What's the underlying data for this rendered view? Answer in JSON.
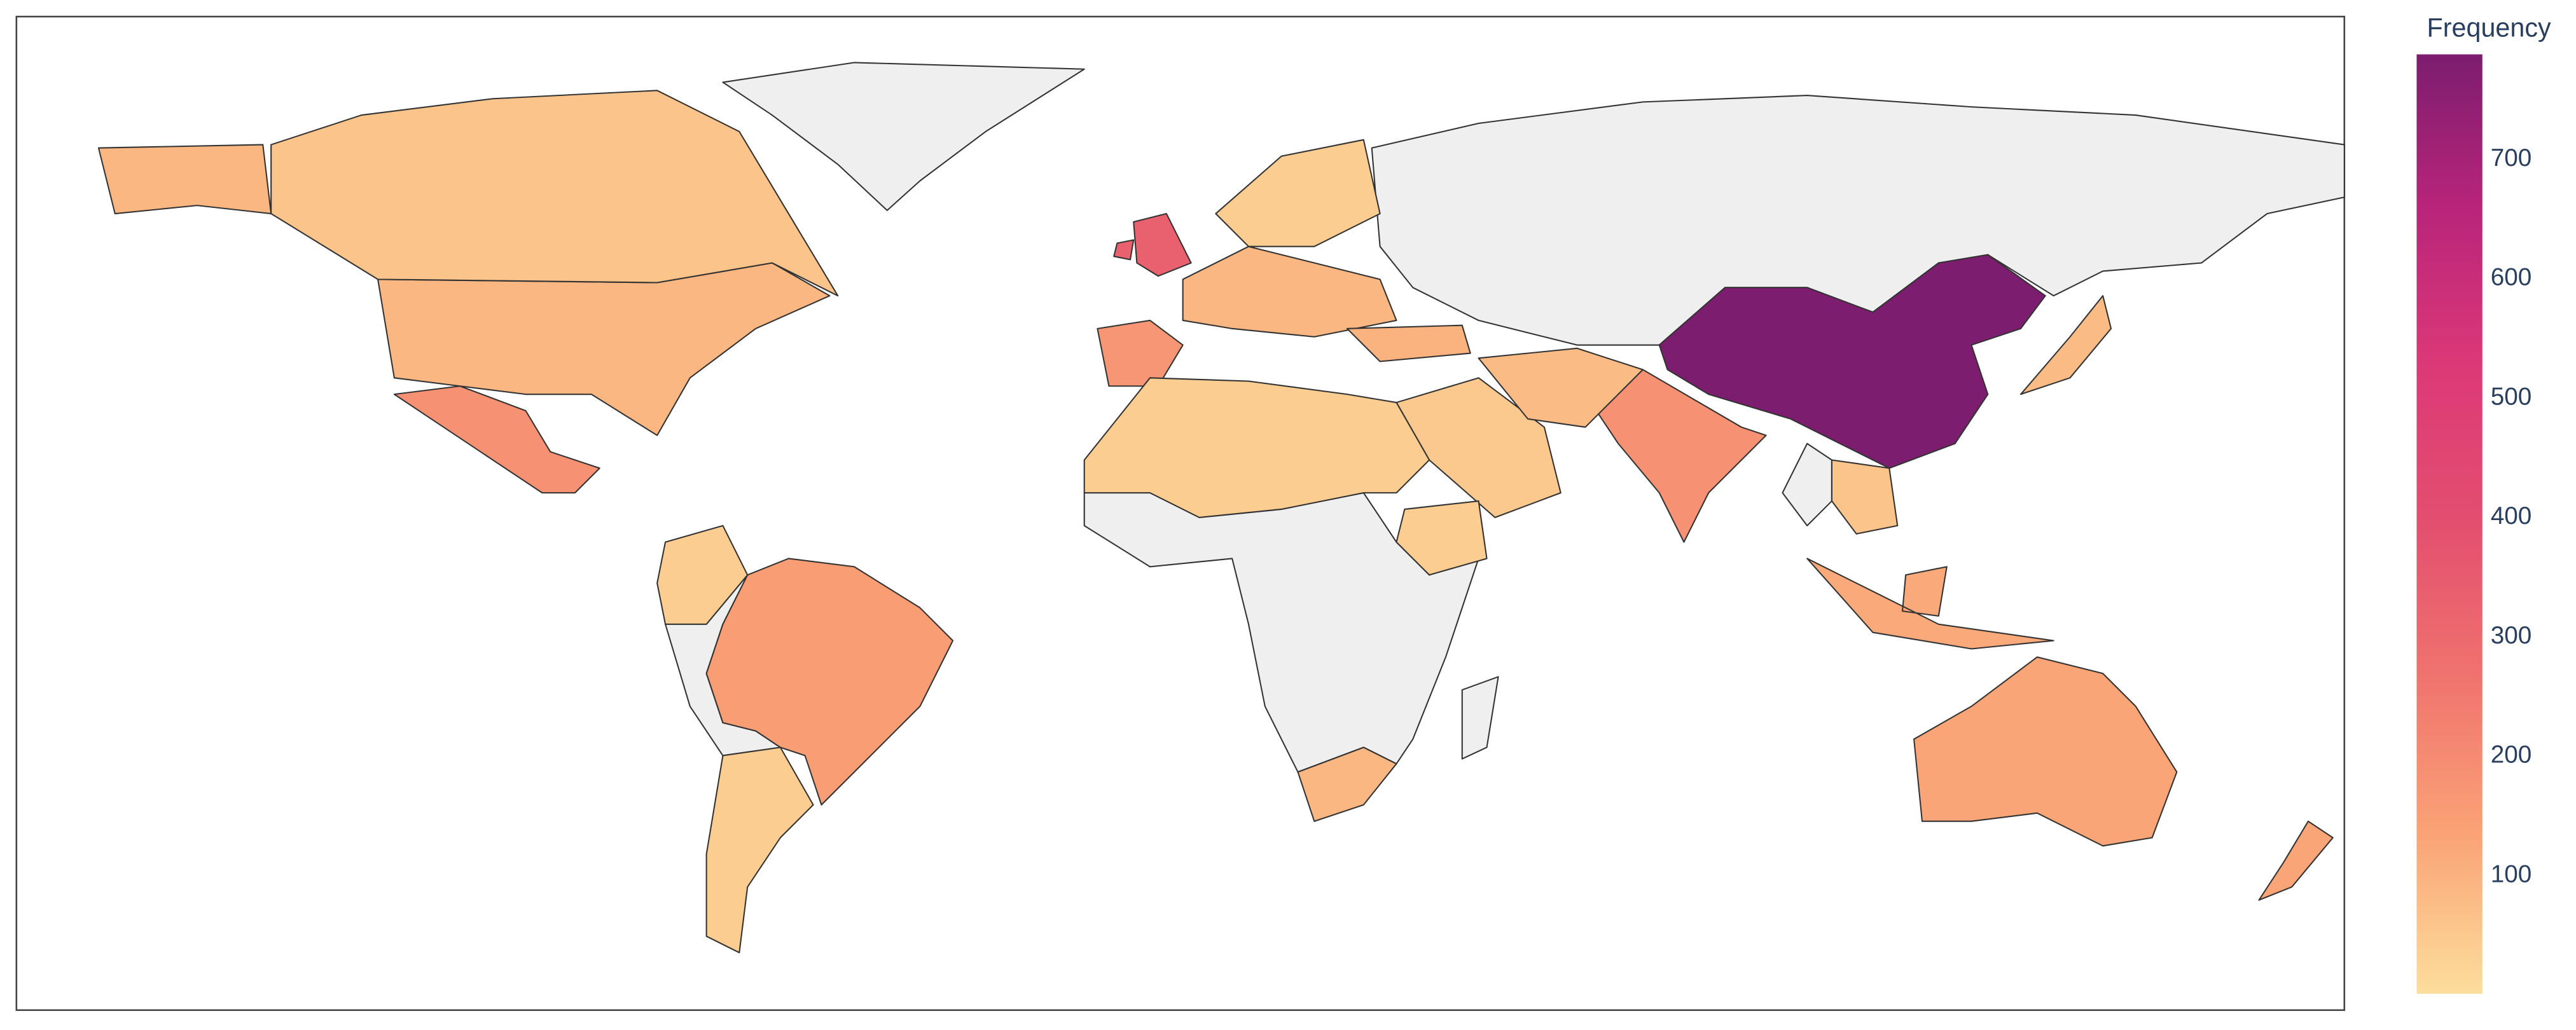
{
  "chart_data": {
    "type": "choropleth",
    "colorbar_title": "Frequency",
    "values": [
      788,
      330,
      180,
      180,
      150,
      130,
      170,
      90,
      60,
      40,
      90,
      90,
      40,
      50,
      40,
      80,
      80,
      120,
      100,
      40,
      40,
      130,
      60
    ],
    "zlim": [
      1,
      788
    ],
    "zticks": [
      100,
      200,
      300,
      400,
      500,
      600,
      700
    ],
    "colorscale": [
      "#fcde9c",
      "#faa476",
      "#f0746e",
      "#e34f6f",
      "#dc3977",
      "#b9257a",
      "#7c1d6f"
    ],
    "missing_color": "#efefef"
  }
}
